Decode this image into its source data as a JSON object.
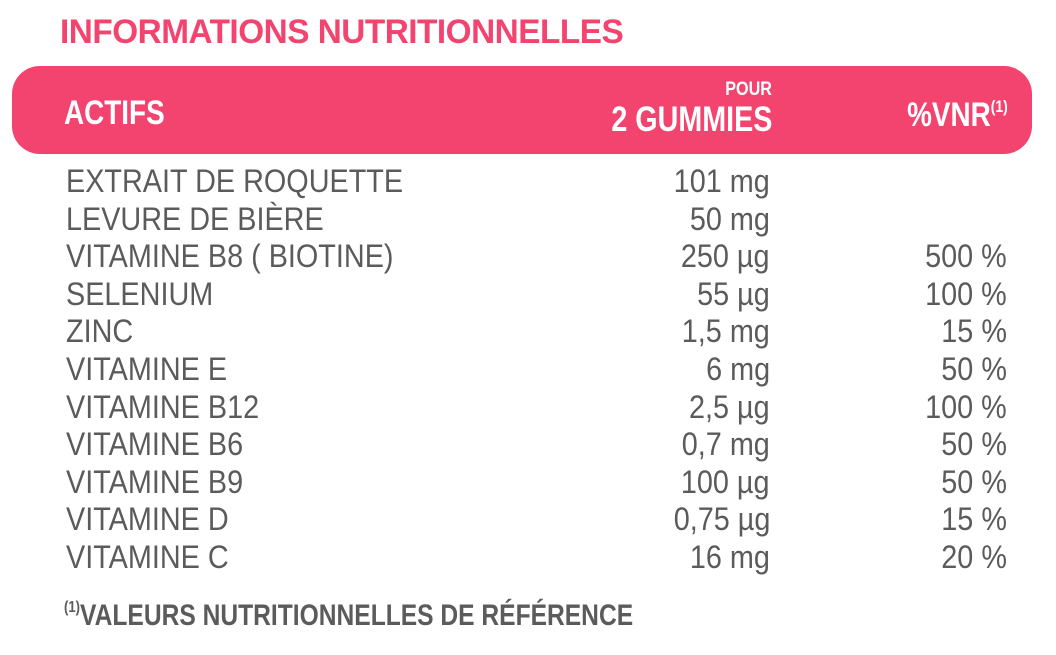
{
  "title": "INFORMATIONS NUTRITIONNELLES",
  "colors": {
    "accent": "#f3446f",
    "text": "#5b5b5b",
    "header_text": "#ffffff"
  },
  "header": {
    "actifs": "ACTIFS",
    "pour": "POUR",
    "gummies": "2 GUMMIES",
    "vnr": "%VNR",
    "vnr_note": "(1)"
  },
  "rows": [
    {
      "name": "EXTRAIT DE ROQUETTE",
      "qty": "101 mg",
      "vnr": ""
    },
    {
      "name": "LEVURE DE BIÈRE",
      "qty": "50 mg",
      "vnr": ""
    },
    {
      "name": "VITAMINE B8 ( BIOTINE)",
      "qty": "250 µg",
      "vnr": "500 %"
    },
    {
      "name": "SELENIUM",
      "qty": "55 µg",
      "vnr": "100 %"
    },
    {
      "name": "ZINC",
      "qty": "1,5 mg",
      "vnr": "15 %"
    },
    {
      "name": "VITAMINE E",
      "qty": "6 mg",
      "vnr": "50 %"
    },
    {
      "name": "VITAMINE B12",
      "qty": "2,5 µg",
      "vnr": "100 %"
    },
    {
      "name": "VITAMINE B6",
      "qty": "0,7 mg",
      "vnr": "50 %"
    },
    {
      "name": "VITAMINE B9",
      "qty": "100 µg",
      "vnr": "50 %"
    },
    {
      "name": "VITAMINE D",
      "qty": "0,75 µg",
      "vnr": "15 %"
    },
    {
      "name": "VITAMINE C",
      "qty": "16 mg",
      "vnr": "20 %"
    }
  ],
  "footnote": {
    "mark": "(1)",
    "text": "VALEURS NUTRITIONNELLES DE RÉFÉRENCE"
  }
}
